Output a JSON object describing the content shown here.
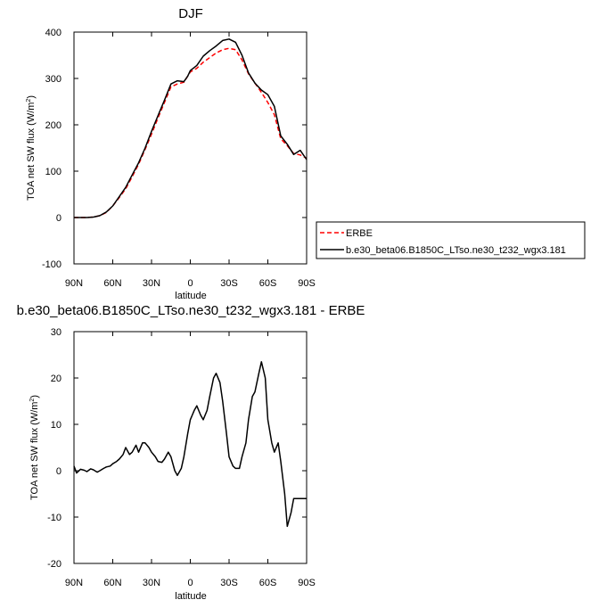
{
  "chart_data": [
    {
      "type": "line",
      "title": "DJF",
      "xlabel": "latitude",
      "ylabel": "TOA net SW flux (W/m²)",
      "ylabel_main": "TOA net SW flux (W/m",
      "ylabel_sup": "2",
      "ylabel_close": ")",
      "xlim": [
        -90,
        90
      ],
      "ylim": [
        -100,
        400
      ],
      "x_ticks": [
        -90,
        -60,
        -30,
        0,
        30,
        60,
        90
      ],
      "x_tick_labels": [
        "90N",
        "60N",
        "30N",
        "0",
        "30S",
        "60S",
        "90S"
      ],
      "y_ticks": [
        -100,
        0,
        100,
        200,
        300,
        400
      ],
      "y_tick_labels": [
        "-100",
        "0",
        "100",
        "200",
        "300",
        "400"
      ],
      "legend_position": "right",
      "series": [
        {
          "name": "ERBE",
          "color": "#ff0000",
          "dash": "dashed",
          "x": [
            -90,
            -85,
            -80,
            -75,
            -70,
            -65,
            -60,
            -55,
            -50,
            -45,
            -40,
            -35,
            -30,
            -25,
            -20,
            -15,
            -10,
            -5,
            -2,
            0,
            5,
            10,
            15,
            20,
            25,
            30,
            35,
            40,
            45,
            50,
            55,
            60,
            65,
            70,
            75,
            80,
            85,
            90
          ],
          "y": [
            0,
            0,
            0,
            1,
            4,
            11,
            25,
            43,
            62,
            88,
            115,
            147,
            180,
            215,
            248,
            282,
            288,
            292,
            305,
            314,
            322,
            335,
            345,
            355,
            362,
            365,
            362,
            340,
            310,
            290,
            270,
            248,
            222,
            170,
            155,
            138,
            135,
            128
          ]
        },
        {
          "name": "b.e30_beta06.B1850C_LTso.ne30_t232_wgx3.181",
          "color": "#000000",
          "dash": "solid",
          "x": [
            -90,
            -85,
            -80,
            -75,
            -70,
            -65,
            -60,
            -55,
            -50,
            -45,
            -40,
            -35,
            -30,
            -25,
            -20,
            -15,
            -10,
            -5,
            -2,
            0,
            5,
            10,
            15,
            20,
            25,
            30,
            35,
            40,
            45,
            50,
            55,
            60,
            65,
            70,
            75,
            80,
            85,
            90
          ],
          "y": [
            0,
            0,
            0,
            1,
            4,
            12,
            25,
            45,
            65,
            92,
            118,
            150,
            186,
            220,
            253,
            288,
            295,
            293,
            305,
            317,
            328,
            348,
            360,
            370,
            382,
            385,
            378,
            350,
            312,
            290,
            275,
            265,
            240,
            176,
            158,
            136,
            145,
            125
          ]
        }
      ]
    },
    {
      "type": "line",
      "title": "b.e30_beta06.B1850C_LTso.ne30_t232_wgx3.181 - ERBE",
      "xlabel": "latitude",
      "ylabel": "TOA net SW flux (W/m²)",
      "ylabel_main": "TOA net SW flux (W/m",
      "ylabel_sup": "2",
      "ylabel_close": ")",
      "xlim": [
        -90,
        90
      ],
      "ylim": [
        -20,
        30
      ],
      "x_ticks": [
        -90,
        -60,
        -30,
        0,
        30,
        60,
        90
      ],
      "x_tick_labels": [
        "90N",
        "60N",
        "30N",
        "0",
        "30S",
        "60S",
        "90S"
      ],
      "y_ticks": [
        -20,
        -10,
        0,
        10,
        20,
        30
      ],
      "y_tick_labels": [
        "-20",
        "-10",
        "0",
        "10",
        "20",
        "30"
      ],
      "series": [
        {
          "name": "",
          "color": "#000000",
          "dash": "solid",
          "x": [
            -90,
            -88,
            -85,
            -82,
            -80,
            -77,
            -75,
            -72,
            -70,
            -67,
            -65,
            -62,
            -60,
            -57,
            -55,
            -52,
            -50,
            -47,
            -45,
            -42,
            -40,
            -37,
            -35,
            -32,
            -30,
            -27,
            -25,
            -22,
            -20,
            -17,
            -15,
            -12,
            -10,
            -7,
            -5,
            -2,
            0,
            3,
            5,
            8,
            10,
            13,
            15,
            18,
            20,
            23,
            25,
            28,
            30,
            33,
            35,
            38,
            40,
            43,
            45,
            48,
            50,
            53,
            55,
            58,
            60,
            63,
            65,
            68,
            70,
            73,
            75,
            78,
            80,
            83,
            85,
            88,
            90
          ],
          "y": [
            1,
            -0.5,
            0.3,
            0.1,
            -0.2,
            0.4,
            0.2,
            -0.3,
            0,
            0.5,
            0.8,
            1,
            1.5,
            2,
            2.5,
            3.5,
            5,
            3.5,
            4,
            5.5,
            4,
            6,
            6,
            5,
            4,
            3,
            2,
            1.8,
            2.5,
            4,
            3,
            0,
            -1,
            0.5,
            3,
            8,
            11,
            13,
            14,
            12,
            11,
            13,
            16,
            20,
            21,
            19,
            15,
            8,
            3,
            1,
            0.5,
            0.5,
            3,
            6,
            11,
            16,
            17,
            21,
            23.5,
            20,
            11,
            6,
            4,
            6,
            2,
            -5,
            -12,
            -9,
            -6,
            -6,
            -6,
            -6,
            -6
          ]
        }
      ]
    }
  ]
}
